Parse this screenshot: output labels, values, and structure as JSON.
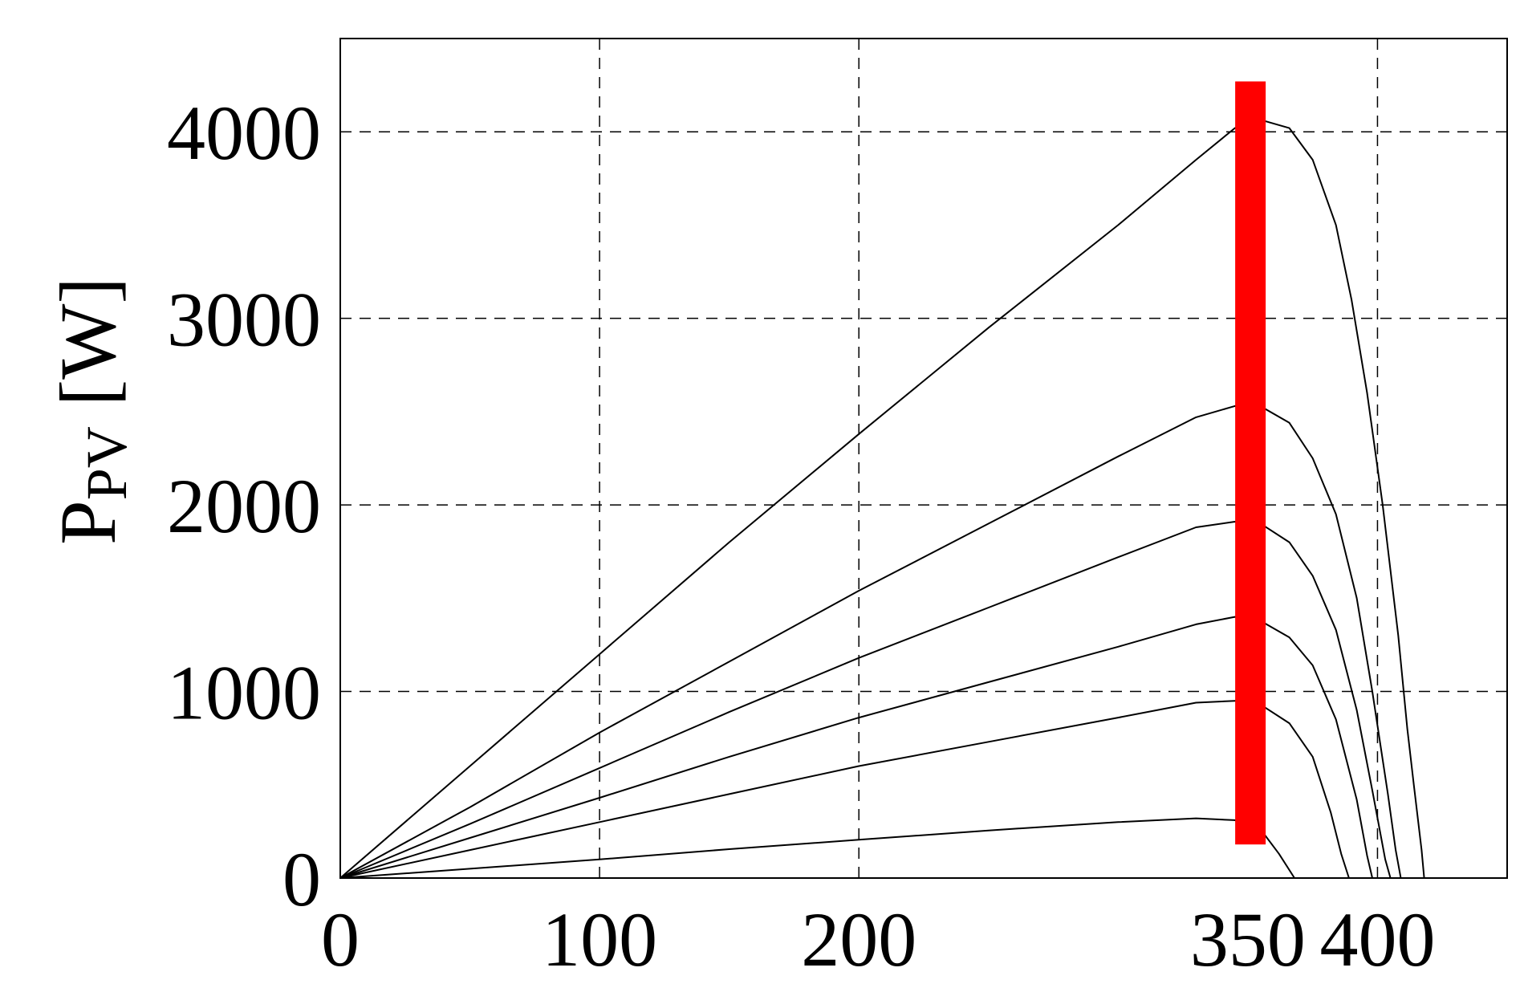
{
  "chart_data": {
    "type": "line",
    "title": "",
    "xlabel": "",
    "ylabel": {
      "main": "P",
      "subscript": "PV",
      "unit": " [W]"
    },
    "xlim": [
      0,
      450
    ],
    "ylim": [
      0,
      4500
    ],
    "x_ticks": [
      0,
      100,
      200,
      350,
      400
    ],
    "x_tick_labels": [
      "0",
      "100",
      "200",
      "350",
      "400"
    ],
    "x_grid": [
      100,
      200,
      400
    ],
    "y_ticks": [
      0,
      1000,
      2000,
      3000,
      4000
    ],
    "y_tick_labels": [
      "0",
      "1000",
      "2000",
      "3000",
      "4000"
    ],
    "y_grid": [
      1000,
      2000,
      3000,
      4000
    ],
    "grid": true,
    "grid_style": "dashed",
    "line_color": "#000000",
    "series": [
      {
        "x": [
          0,
          50,
          100,
          150,
          200,
          250,
          300,
          330,
          345,
          356,
          366,
          375,
          384,
          390,
          396,
          402,
          408,
          411.5,
          414,
          417,
          418
        ],
        "y": [
          0,
          600,
          1200,
          1800,
          2380,
          2950,
          3500,
          3850,
          4020,
          4060,
          4020,
          3850,
          3500,
          3100,
          2600,
          2000,
          1300,
          800,
          500,
          150,
          0
        ]
      },
      {
        "x": [
          0,
          50,
          100,
          150,
          200,
          250,
          300,
          330,
          345,
          356,
          366,
          375,
          384,
          392,
          398,
          404,
          407,
          409
        ],
        "y": [
          0,
          380,
          780,
          1160,
          1540,
          1900,
          2260,
          2470,
          2530,
          2520,
          2440,
          2250,
          1950,
          1500,
          1000,
          450,
          150,
          0
        ]
      },
      {
        "x": [
          0,
          50,
          100,
          150,
          200,
          250,
          300,
          330,
          345,
          356,
          366,
          375,
          384,
          392,
          398,
          403,
          405
        ],
        "y": [
          0,
          290,
          590,
          890,
          1180,
          1450,
          1720,
          1880,
          1910,
          1890,
          1800,
          1620,
          1330,
          900,
          470,
          100,
          0
        ]
      },
      {
        "x": [
          0,
          50,
          100,
          150,
          200,
          250,
          300,
          330,
          345,
          356,
          366,
          375,
          384,
          392,
          396,
          398
        ],
        "y": [
          0,
          215,
          430,
          650,
          860,
          1050,
          1240,
          1360,
          1400,
          1370,
          1290,
          1140,
          850,
          420,
          120,
          0
        ]
      },
      {
        "x": [
          0,
          50,
          100,
          150,
          200,
          250,
          300,
          330,
          345,
          356,
          366,
          375,
          382,
          386,
          389
        ],
        "y": [
          0,
          150,
          300,
          450,
          600,
          730,
          860,
          940,
          950,
          920,
          830,
          650,
          350,
          130,
          0
        ]
      },
      {
        "x": [
          0,
          50,
          100,
          150,
          200,
          250,
          300,
          330,
          345,
          355,
          362,
          368
        ],
        "y": [
          0,
          50,
          100,
          155,
          205,
          255,
          300,
          320,
          310,
          260,
          130,
          0
        ]
      }
    ],
    "highlight_bar": {
      "x": 351,
      "y_range": [
        180,
        4270
      ],
      "color": "#ff0000"
    }
  }
}
